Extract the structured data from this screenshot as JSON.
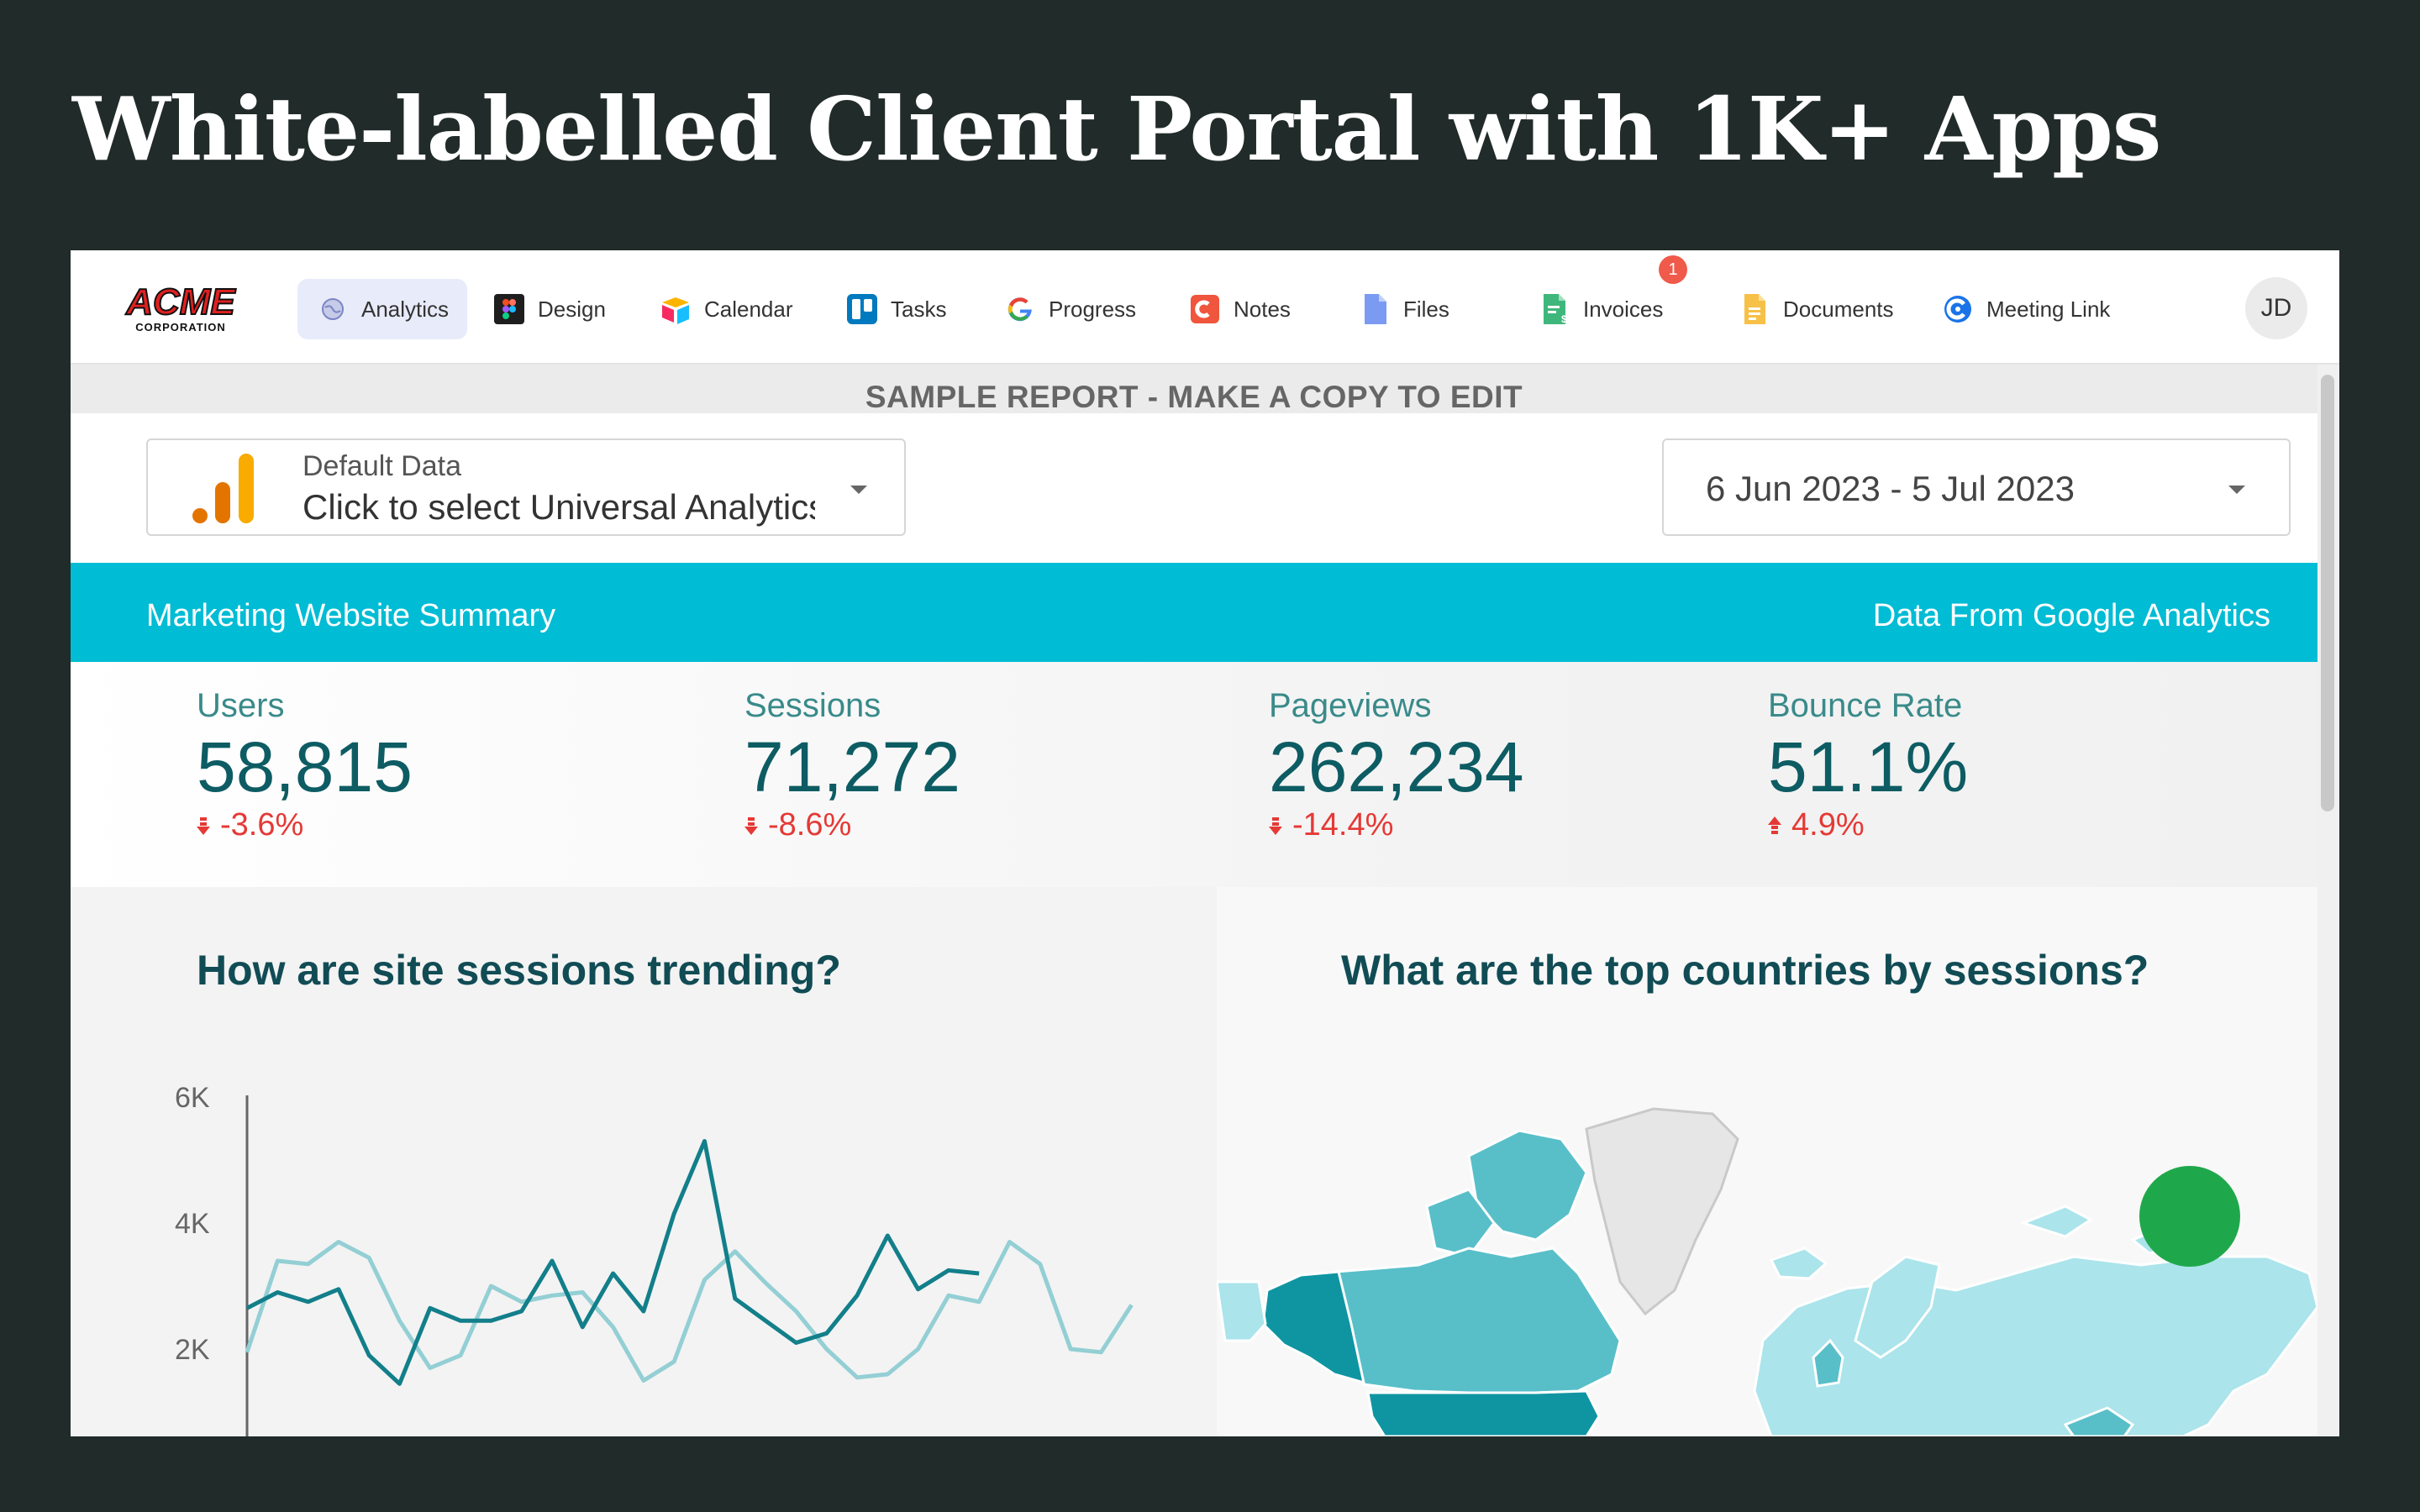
{
  "headline": "White-labelled Client Portal with 1K+ Apps",
  "nav": {
    "logo_text": "ACME",
    "logo_subtext": "CORPORATION",
    "items": [
      {
        "label": "Analytics",
        "icon": "analytics-icon"
      },
      {
        "label": "Design",
        "icon": "figma-icon"
      },
      {
        "label": "Calendar",
        "icon": "airtable-icon"
      },
      {
        "label": "Tasks",
        "icon": "trello-icon"
      },
      {
        "label": "Progress",
        "icon": "google-icon"
      },
      {
        "label": "Notes",
        "icon": "notes-icon"
      },
      {
        "label": "Files",
        "icon": "files-icon"
      },
      {
        "label": "Invoices",
        "icon": "invoice-icon",
        "badge": "1"
      },
      {
        "label": "Documents",
        "icon": "documents-icon"
      },
      {
        "label": "Meeting Link",
        "icon": "meeting-icon"
      }
    ],
    "avatar": "JD"
  },
  "report": {
    "banner": "SAMPLE REPORT - MAKE A COPY TO EDIT",
    "data_source": {
      "label": "Default Data",
      "value": "Click to select Universal Analytics"
    },
    "date_range": "6 Jun 2023 - 5 Jul 2023",
    "band": {
      "left": "Marketing Website Summary",
      "right": "Data From Google Analytics"
    },
    "kpis": [
      {
        "label": "Users",
        "value": "58,815",
        "delta": "-3.6%",
        "direction": "down"
      },
      {
        "label": "Sessions",
        "value": "71,272",
        "delta": "-8.6%",
        "direction": "down"
      },
      {
        "label": "Pageviews",
        "value": "262,234",
        "delta": "-14.4%",
        "direction": "down"
      },
      {
        "label": "Bounce Rate",
        "value": "51.1%",
        "delta": "4.9%",
        "direction": "up"
      }
    ],
    "left_panel_title": "How are site sessions trending?",
    "right_panel_title": "What are the top countries by sessions?"
  },
  "colors": {
    "current_series": "#127f8a",
    "previous_series": "#93cfd4",
    "accent": "#00bcd4",
    "delta": "#e53935"
  },
  "chart_data": {
    "type": "line",
    "title": "How are site sessions trending?",
    "ylim": [
      0,
      6000
    ],
    "y_ticks": [
      {
        "value": 6000,
        "label": "6K"
      },
      {
        "value": 4000,
        "label": "4K"
      },
      {
        "value": 2000,
        "label": "2K"
      }
    ],
    "series": [
      {
        "name": "current",
        "values": [
          2650,
          2900,
          2750,
          2950,
          1900,
          1450,
          2650,
          2450,
          2450,
          2600,
          3400,
          2350,
          3200,
          2600,
          4150,
          5300,
          2800,
          2450,
          2100,
          2250,
          2850,
          3800,
          2950,
          3250,
          3200
        ]
      },
      {
        "name": "previous",
        "values": [
          1950,
          3400,
          3350,
          3700,
          3450,
          2450,
          1700,
          1900,
          3000,
          2750,
          2850,
          2900,
          2350,
          1500,
          1800,
          3100,
          3550,
          3050,
          2600,
          2000,
          1550,
          1600,
          2000,
          2850,
          2750,
          3700,
          3350,
          2000,
          1950,
          2700
        ]
      }
    ]
  }
}
